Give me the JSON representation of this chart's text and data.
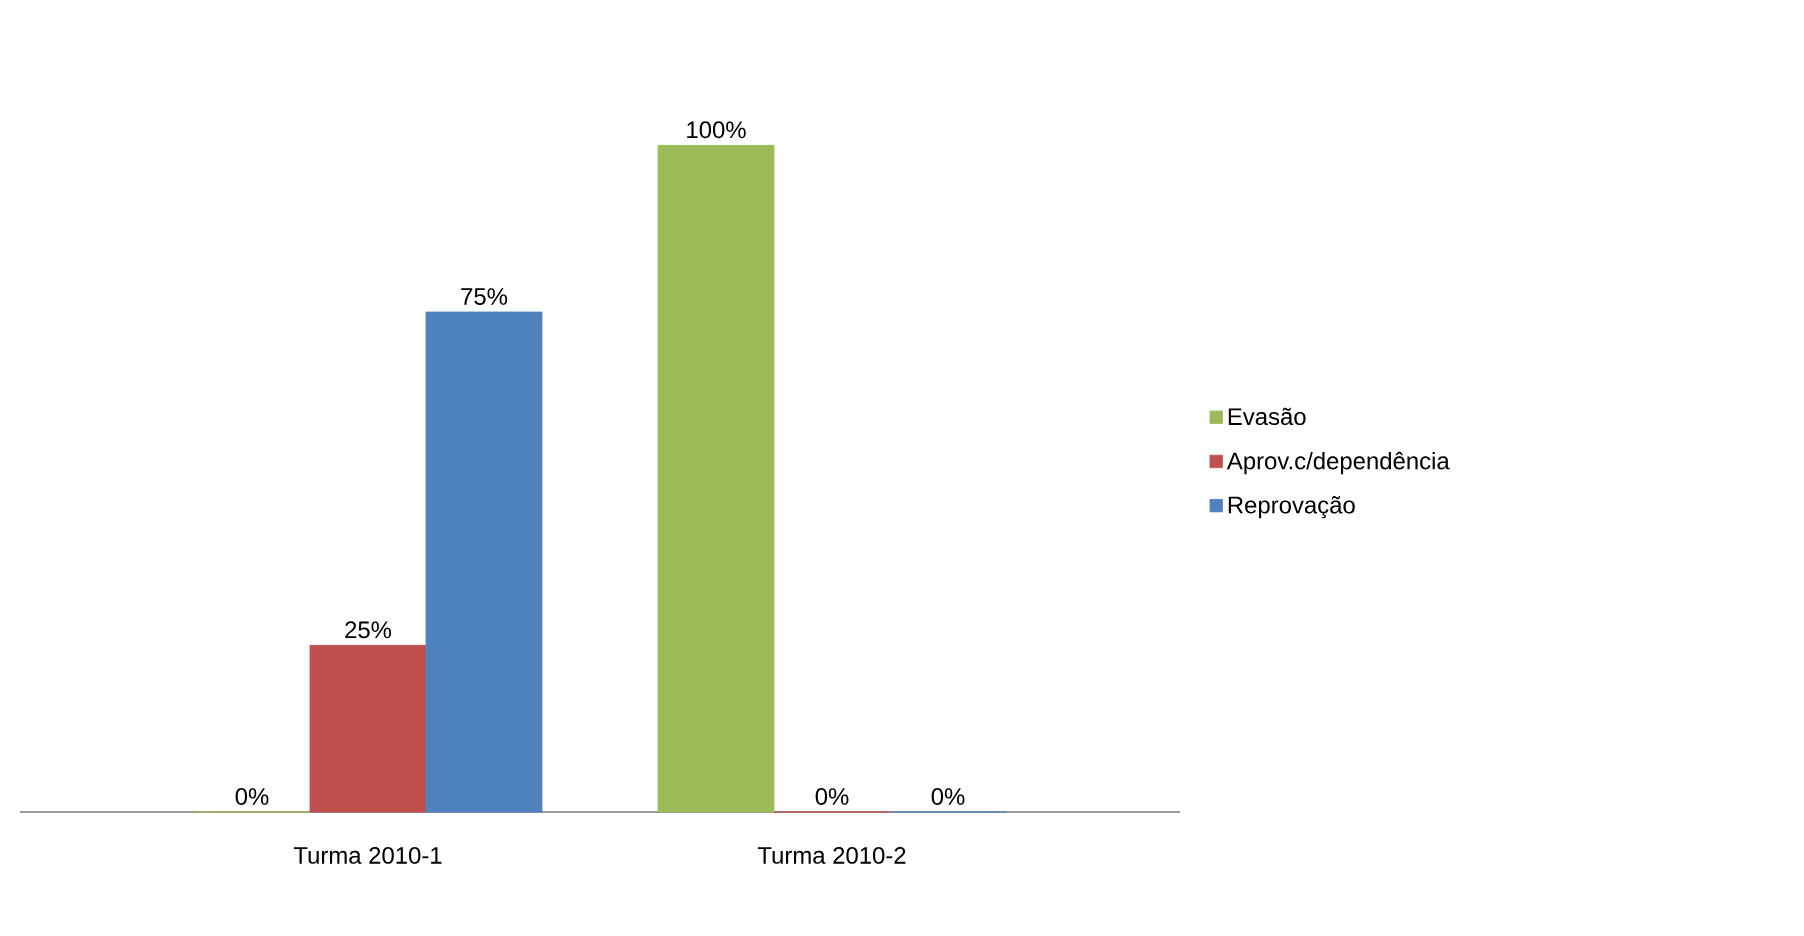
{
  "chart_data": {
    "type": "bar",
    "categories": [
      "Turma 2010-1",
      "Turma 2010-2"
    ],
    "series": [
      {
        "name": "Evasão",
        "color": "#9bbb59",
        "values": [
          0,
          100
        ],
        "value_labels": [
          "0%",
          "100%"
        ]
      },
      {
        "name": "Aprov.c/dependência",
        "color": "#c0504d",
        "values": [
          25,
          0
        ],
        "value_labels": [
          "25%",
          "0%"
        ]
      },
      {
        "name": "Reprovação",
        "color": "#4f81bd",
        "values": [
          75,
          0
        ],
        "value_labels": [
          "75%",
          "0%"
        ]
      }
    ],
    "legend": "right"
  }
}
